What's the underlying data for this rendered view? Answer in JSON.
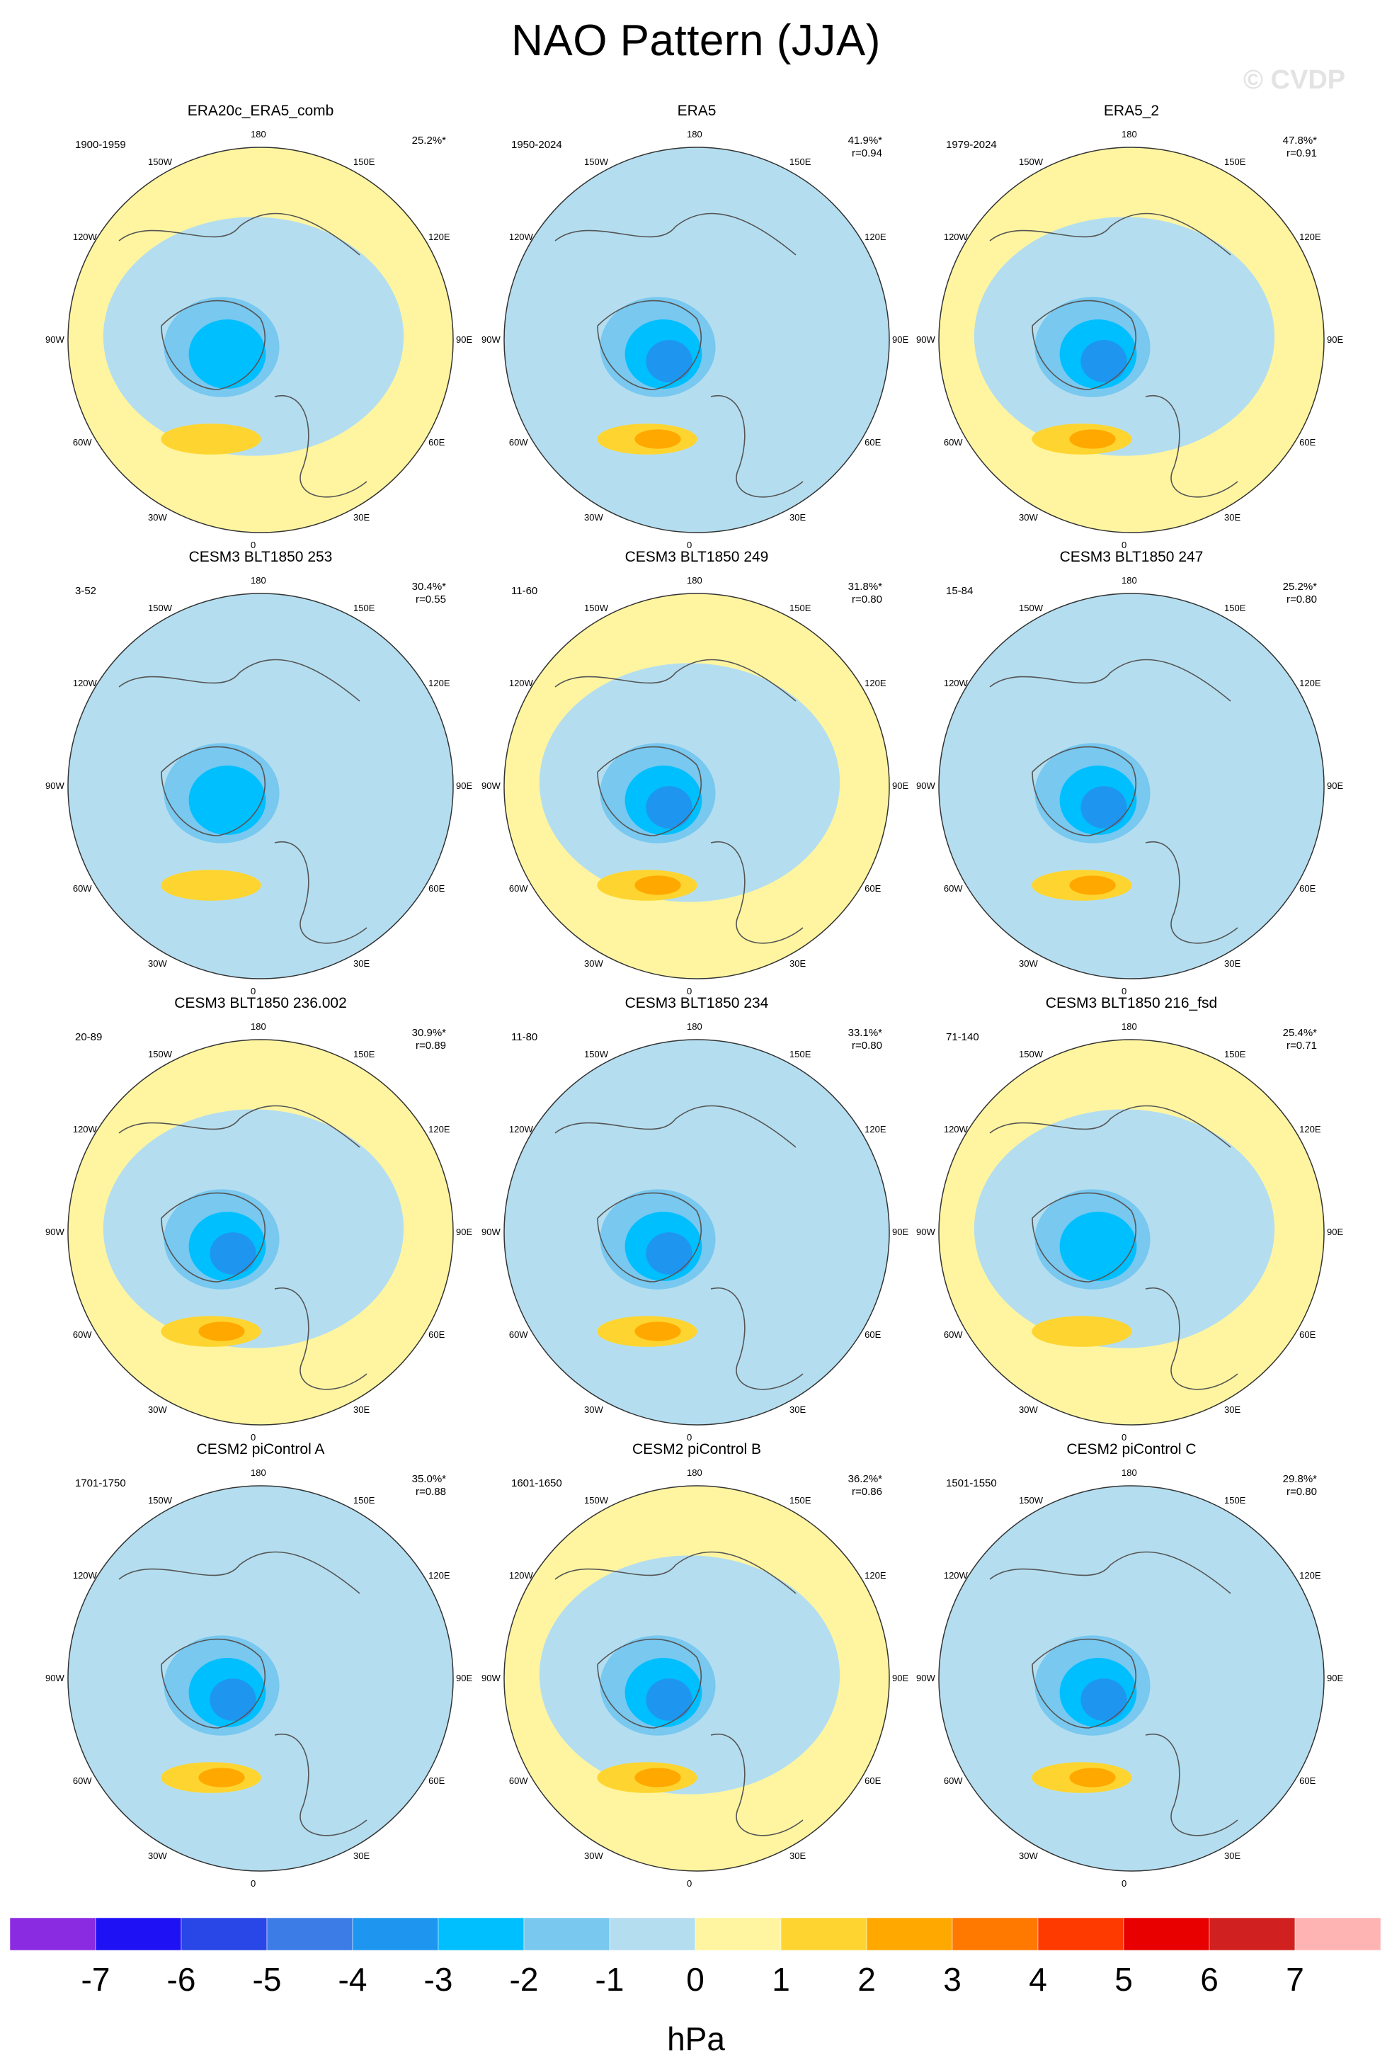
{
  "title": "NAO Pattern (JJA)",
  "watermark": "© CVDP",
  "longitude_labels": [
    "180",
    "150E",
    "120E",
    "90E",
    "60E",
    "30E",
    "0",
    "30W",
    "60W",
    "90W",
    "120W",
    "150W"
  ],
  "panels": [
    {
      "name": "ERA20c_ERA5_comb",
      "period": "1900-1959",
      "percent": "25.2%*",
      "correlation": "",
      "max_anom": 2
    },
    {
      "name": "ERA5",
      "period": "1950-2024",
      "percent": "41.9%*",
      "correlation": "r=0.94",
      "max_anom": 3
    },
    {
      "name": "ERA5_2",
      "period": "1979-2024",
      "percent": "47.8%*",
      "correlation": "r=0.91",
      "max_anom": 3
    },
    {
      "name": "CESM3 BLT1850 253",
      "period": "3-52",
      "percent": "30.4%*",
      "correlation": "r=0.55",
      "max_anom": 2
    },
    {
      "name": "CESM3 BLT1850 249",
      "period": "11-60",
      "percent": "31.8%*",
      "correlation": "r=0.80",
      "max_anom": 3
    },
    {
      "name": "CESM3 BLT1850 247",
      "period": "15-84",
      "percent": "25.2%*",
      "correlation": "r=0.80",
      "max_anom": 3
    },
    {
      "name": "CESM3 BLT1850 236.002",
      "period": "20-89",
      "percent": "30.9%*",
      "correlation": "r=0.89",
      "max_anom": 3
    },
    {
      "name": "CESM3 BLT1850 234",
      "period": "11-80",
      "percent": "33.1%*",
      "correlation": "r=0.80",
      "max_anom": 3
    },
    {
      "name": "CESM3 BLT1850 216_fsd",
      "period": "71-140",
      "percent": "25.4%*",
      "correlation": "r=0.71",
      "max_anom": 2
    },
    {
      "name": "CESM2 piControl A",
      "period": "1701-1750",
      "percent": "35.0%*",
      "correlation": "r=0.88",
      "max_anom": 3
    },
    {
      "name": "CESM2 piControl B",
      "period": "1601-1650",
      "percent": "36.2%*",
      "correlation": "r=0.86",
      "max_anom": 3
    },
    {
      "name": "CESM2 piControl C",
      "period": "1501-1550",
      "percent": "29.8%*",
      "correlation": "r=0.80",
      "max_anom": 3
    }
  ],
  "colorbar": {
    "units": "hPa",
    "labels": [
      "-7",
      "-6",
      "-5",
      "-4",
      "-3",
      "-2",
      "-1",
      "0",
      "1",
      "2",
      "3",
      "4",
      "5",
      "6",
      "7"
    ],
    "colors": [
      "#8a2be2",
      "#1e12f5",
      "#2946e6",
      "#3b7ce6",
      "#1e96f0",
      "#00bfff",
      "#78c8f0",
      "#b4def0",
      "#fff5a0",
      "#fed530",
      "#ffa800",
      "#ff7800",
      "#ff3a00",
      "#e80000",
      "#d02020",
      "#ffb4b4"
    ]
  }
}
